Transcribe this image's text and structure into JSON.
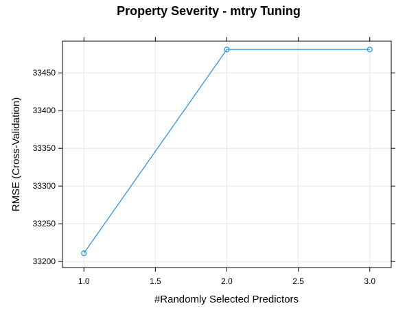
{
  "chart_data": {
    "type": "line",
    "title": "Property Severity - mtry Tuning",
    "xlabel": "#Randomly Selected Predictors",
    "ylabel": "RMSE (Cross-Validation)",
    "xlim": [
      0.85,
      3.15
    ],
    "ylim": [
      33192,
      33492
    ],
    "xticks": [
      1.0,
      1.5,
      2.0,
      2.5,
      3.0
    ],
    "xtick_labels": [
      "1.0",
      "1.5",
      "2.0",
      "2.5",
      "3.0"
    ],
    "yticks": [
      33200,
      33250,
      33300,
      33350,
      33400,
      33450
    ],
    "ytick_labels": [
      "33200",
      "33250",
      "33300",
      "33350",
      "33400",
      "33450"
    ],
    "grid": true,
    "series": [
      {
        "color": "#1f8fe5",
        "marker": "open-circle",
        "x": [
          1.0,
          2.0,
          3.0
        ],
        "y": [
          33211,
          33481,
          33481
        ]
      }
    ]
  }
}
